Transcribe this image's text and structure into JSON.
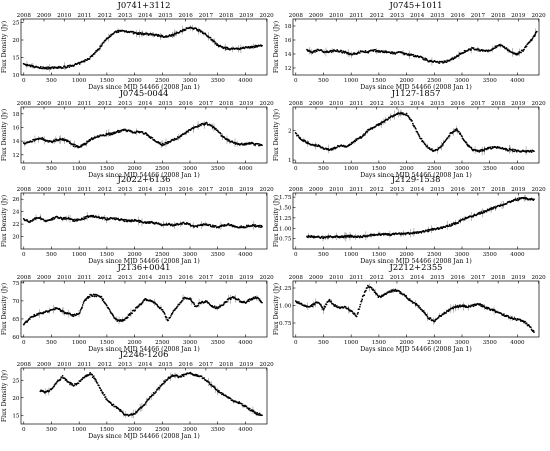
{
  "figure": {
    "xlabel": "Days since MJD 54466 (2008 Jan 1)",
    "ylabel": "Flux Density (Jy)",
    "top_axis_years": [
      "2008",
      "2009",
      "2010",
      "2011",
      "2012",
      "2013",
      "2014",
      "2015",
      "2016",
      "2017",
      "2018",
      "2019",
      "2020"
    ],
    "bottom_ticks": [
      "0",
      "500",
      "1000",
      "1500",
      "2000",
      "2500",
      "3000",
      "3500",
      "4000"
    ]
  },
  "chart_data": [
    {
      "type": "scatter",
      "title": "J0741+3112",
      "xlim": [
        -50,
        4390
      ],
      "ylim": [
        10,
        26
      ],
      "yticks": [
        "10",
        "15",
        "20",
        "25"
      ],
      "x": [
        0,
        100,
        200,
        300,
        400,
        500,
        600,
        700,
        800,
        900,
        1000,
        1100,
        1200,
        1300,
        1400,
        1500,
        1600,
        1700,
        1800,
        1900,
        2000,
        2100,
        2200,
        2300,
        2400,
        2500,
        2600,
        2700,
        2800,
        2900,
        3000,
        3100,
        3200,
        3300,
        3400,
        3500,
        3600,
        3700,
        3800,
        3900,
        4000,
        4100,
        4200,
        4300
      ],
      "y": [
        13,
        12.6,
        12.3,
        12.1,
        12,
        12,
        12.1,
        12.2,
        12.4,
        12.8,
        13.3,
        14,
        15,
        16.5,
        18.5,
        20.5,
        21.8,
        22.5,
        22.6,
        22.4,
        22,
        21.8,
        21.7,
        21.5,
        21.3,
        21.1,
        21,
        21.5,
        22.3,
        23,
        23.5,
        23.2,
        22.5,
        21.5,
        20,
        18.5,
        17.8,
        17.5,
        17.4,
        17.5,
        17.8,
        18,
        18.2,
        18.4
      ]
    },
    {
      "type": "scatter",
      "title": "J0745+1011",
      "xlim": [
        -50,
        4390
      ],
      "ylim": [
        11,
        19
      ],
      "yticks": [
        "12",
        "14",
        "16",
        "18"
      ],
      "x": [
        200,
        300,
        400,
        500,
        600,
        700,
        800,
        900,
        1000,
        1100,
        1200,
        1300,
        1400,
        1500,
        1600,
        1700,
        1800,
        1900,
        2000,
        2100,
        2200,
        2300,
        2400,
        2500,
        2600,
        2700,
        2800,
        2900,
        3000,
        3100,
        3200,
        3300,
        3400,
        3500,
        3600,
        3700,
        3800,
        3900,
        4000,
        4100,
        4200,
        4300,
        4350
      ],
      "y": [
        14.5,
        14.2,
        14.6,
        14.4,
        14.3,
        14.5,
        14.4,
        14.2,
        14,
        14.1,
        14.4,
        14.3,
        14.5,
        14.4,
        14.3,
        14.2,
        14.1,
        14.2,
        14,
        13.8,
        13.7,
        13.4,
        13,
        12.9,
        12.8,
        12.9,
        13.2,
        13.6,
        14.2,
        14.5,
        14.8,
        14.6,
        14.4,
        14.5,
        15,
        15.3,
        14.8,
        14.2,
        14,
        14.5,
        15.5,
        16.5,
        17.2
      ]
    },
    {
      "type": "scatter",
      "title": "J0745-0044",
      "xlim": [
        -50,
        4390
      ],
      "ylim": [
        10.8,
        19
      ],
      "yticks": [
        "12",
        "14",
        "16",
        "18"
      ],
      "x": [
        0,
        100,
        200,
        300,
        400,
        500,
        600,
        700,
        800,
        900,
        1000,
        1100,
        1200,
        1300,
        1400,
        1500,
        1600,
        1700,
        1800,
        1900,
        2000,
        2100,
        2200,
        2300,
        2400,
        2500,
        2600,
        2700,
        2800,
        2900,
        3000,
        3100,
        3200,
        3300,
        3400,
        3500,
        3600,
        3700,
        3800,
        3900,
        4000,
        4100,
        4200,
        4300
      ],
      "y": [
        13.6,
        13.8,
        14.2,
        14.5,
        14.1,
        13.9,
        14.2,
        14.3,
        14,
        13.4,
        13.1,
        13.6,
        14.2,
        14.6,
        14.8,
        15,
        15.1,
        15.4,
        15.6,
        15.5,
        15.3,
        15.4,
        15.1,
        14.5,
        13.9,
        13.5,
        13.8,
        14.2,
        14.6,
        15.1,
        15.6,
        16.1,
        16.4,
        16.6,
        16.2,
        15.5,
        14.6,
        14.1,
        13.7,
        13.5,
        13.6,
        13.7,
        13.5,
        13.4
      ]
    },
    {
      "type": "scatter",
      "title": "J1127-1857",
      "xlim": [
        -50,
        4390
      ],
      "ylim": [
        0.9,
        2.8
      ],
      "yticks": [
        "1",
        "2"
      ],
      "x": [
        0,
        100,
        200,
        300,
        400,
        500,
        600,
        700,
        800,
        900,
        1000,
        1100,
        1200,
        1300,
        1400,
        1500,
        1600,
        1700,
        1800,
        1900,
        2000,
        2100,
        2200,
        2300,
        2400,
        2500,
        2600,
        2700,
        2800,
        2900,
        3000,
        3100,
        3200,
        3300,
        3400,
        3500,
        3600,
        3700,
        3800,
        3900,
        4000,
        4100,
        4200,
        4300
      ],
      "y": [
        1.9,
        1.7,
        1.6,
        1.5,
        1.5,
        1.4,
        1.35,
        1.4,
        1.5,
        1.45,
        1.55,
        1.7,
        1.8,
        2,
        2.1,
        2.2,
        2.3,
        2.45,
        2.55,
        2.6,
        2.55,
        2.3,
        1.9,
        1.6,
        1.4,
        1.3,
        1.4,
        1.65,
        1.9,
        2.05,
        1.8,
        1.5,
        1.35,
        1.3,
        1.35,
        1.4,
        1.45,
        1.4,
        1.35,
        1.35,
        1.3,
        1.3,
        1.3,
        1.3
      ]
    },
    {
      "type": "scatter",
      "title": "J2022+6136",
      "xlim": [
        -50,
        4390
      ],
      "ylim": [
        18,
        27
      ],
      "yticks": [
        "20",
        "22",
        "24",
        "26"
      ],
      "x": [
        0,
        100,
        200,
        300,
        400,
        500,
        600,
        700,
        800,
        900,
        1000,
        1100,
        1200,
        1300,
        1400,
        1500,
        1600,
        1700,
        1800,
        1900,
        2000,
        2100,
        2200,
        2300,
        2400,
        2500,
        2600,
        2700,
        2800,
        2900,
        3000,
        3100,
        3200,
        3300,
        3400,
        3500,
        3600,
        3700,
        3800,
        3900,
        4000,
        4100,
        4200,
        4300
      ],
      "y": [
        22.8,
        22.4,
        22.9,
        23,
        22.5,
        22.8,
        23.1,
        22.9,
        23,
        22.6,
        22.7,
        23,
        23.3,
        23.2,
        23,
        22.8,
        23,
        22.8,
        22.6,
        22.5,
        22.6,
        22.4,
        22.2,
        22.3,
        22.1,
        21.9,
        22,
        21.8,
        22,
        22.2,
        21.9,
        21.6,
        21.8,
        22,
        21.7,
        21.5,
        21.8,
        21.9,
        21.7,
        21.5,
        21.6,
        21.8,
        21.7,
        21.6
      ]
    },
    {
      "type": "scatter",
      "title": "J2129-1538",
      "xlim": [
        -50,
        4390
      ],
      "ylim": [
        0.5,
        1.85
      ],
      "yticks": [
        "0.75",
        "1.00",
        "1.25",
        "1.50",
        "1.75"
      ],
      "x": [
        200,
        300,
        400,
        500,
        600,
        700,
        800,
        900,
        1000,
        1100,
        1200,
        1300,
        1400,
        1500,
        1600,
        1700,
        1800,
        1900,
        2000,
        2100,
        2200,
        2300,
        2400,
        2500,
        2600,
        2700,
        2800,
        2900,
        3000,
        3100,
        3200,
        3300,
        3400,
        3500,
        3600,
        3700,
        3800,
        3900,
        4000,
        4100,
        4200,
        4300
      ],
      "y": [
        0.8,
        0.8,
        0.79,
        0.78,
        0.79,
        0.8,
        0.79,
        0.8,
        0.81,
        0.8,
        0.8,
        0.82,
        0.84,
        0.85,
        0.86,
        0.85,
        0.86,
        0.87,
        0.87,
        0.88,
        0.9,
        0.92,
        0.95,
        0.98,
        1,
        1.04,
        1.08,
        1.12,
        1.2,
        1.25,
        1.3,
        1.35,
        1.4,
        1.45,
        1.5,
        1.55,
        1.6,
        1.65,
        1.7,
        1.72,
        1.71,
        1.7
      ]
    },
    {
      "type": "scatter",
      "title": "J2136+0041",
      "xlim": [
        -50,
        4390
      ],
      "ylim": [
        60,
        75.5
      ],
      "yticks": [
        "60",
        "65",
        "70",
        "75"
      ],
      "x": [
        0,
        100,
        200,
        300,
        400,
        500,
        600,
        700,
        800,
        900,
        1000,
        1100,
        1200,
        1300,
        1400,
        1500,
        1600,
        1700,
        1800,
        1900,
        2000,
        2100,
        2200,
        2300,
        2400,
        2500,
        2600,
        2700,
        2800,
        2900,
        3000,
        3100,
        3200,
        3300,
        3400,
        3500,
        3600,
        3700,
        3800,
        3900,
        4000,
        4100,
        4200,
        4300
      ],
      "y": [
        63.5,
        65,
        66,
        66.5,
        67,
        67.5,
        68,
        67,
        66.5,
        66,
        66.5,
        70,
        71.5,
        71.5,
        71,
        68.5,
        66,
        64.5,
        64.5,
        66,
        67.5,
        69,
        70.5,
        70,
        69,
        67.5,
        64.5,
        67,
        69,
        71,
        70.5,
        68.5,
        69.5,
        70,
        68.5,
        68,
        69,
        70.5,
        71,
        70,
        69.5,
        70.5,
        71,
        69.5
      ]
    },
    {
      "type": "scatter",
      "title": "J2212+2355",
      "xlim": [
        -50,
        4390
      ],
      "ylim": [
        0.55,
        1.35
      ],
      "yticks": [
        "0.75",
        "1.00",
        "1.25"
      ],
      "x": [
        0,
        100,
        200,
        300,
        400,
        500,
        600,
        700,
        800,
        900,
        1000,
        1100,
        1200,
        1300,
        1400,
        1500,
        1600,
        1700,
        1800,
        1900,
        2000,
        2100,
        2200,
        2300,
        2400,
        2500,
        2600,
        2700,
        2800,
        2900,
        3000,
        3100,
        3200,
        3300,
        3400,
        3500,
        3600,
        3700,
        3800,
        3900,
        4000,
        4100,
        4200,
        4300
      ],
      "y": [
        1.06,
        1.02,
        0.98,
        1,
        1.05,
        0.95,
        1.08,
        1,
        0.96,
        0.98,
        0.92,
        0.85,
        1.1,
        1.28,
        1.22,
        1.12,
        1.15,
        1.2,
        1.22,
        1.18,
        1.12,
        1.05,
        1,
        0.92,
        0.82,
        0.78,
        0.85,
        0.9,
        0.95,
        0.98,
        1,
        0.98,
        1,
        1.02,
        0.98,
        0.95,
        0.92,
        0.88,
        0.85,
        0.82,
        0.8,
        0.78,
        0.72,
        0.62
      ]
    },
    {
      "type": "scatter",
      "title": "J2246-1206",
      "xlim": [
        -50,
        4390
      ],
      "ylim": [
        12.5,
        28.5
      ],
      "yticks": [
        "15",
        "20",
        "25"
      ],
      "x": [
        300,
        400,
        500,
        600,
        700,
        800,
        900,
        1000,
        1100,
        1200,
        1300,
        1400,
        1500,
        1600,
        1700,
        1800,
        1900,
        2000,
        2100,
        2200,
        2300,
        2400,
        2500,
        2600,
        2700,
        2800,
        2900,
        3000,
        3100,
        3200,
        3300,
        3400,
        3500,
        3600,
        3700,
        3800,
        3900,
        4000,
        4100,
        4200,
        4300
      ],
      "y": [
        22,
        21.5,
        22.5,
        24.5,
        26,
        24.5,
        23.5,
        24.5,
        26,
        27,
        25,
        22,
        19.5,
        18,
        17,
        15.5,
        14.8,
        15.5,
        17,
        18.5,
        20.5,
        22,
        24,
        25.5,
        26.5,
        26,
        26.5,
        27,
        26.5,
        26,
        25,
        23.5,
        22,
        21,
        20,
        19,
        18.5,
        17.5,
        16.5,
        15.5,
        15
      ]
    }
  ]
}
